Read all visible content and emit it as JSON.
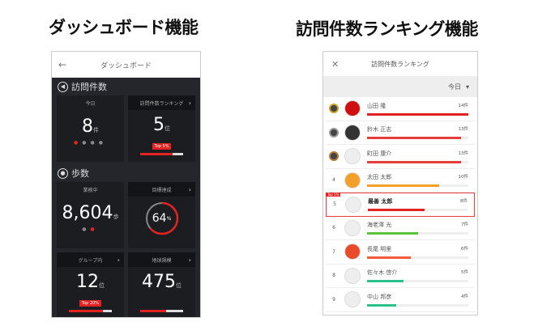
{
  "left": {
    "heading": "ダッシュボード機能",
    "title": "ダッシュボード",
    "visits": {
      "section": "訪問件数",
      "today_label": "今日",
      "today_value": "8",
      "today_unit": "件",
      "rank_label": "訪問件数ランキング",
      "rank_value": "5",
      "rank_unit": "位",
      "rank_badge": "Top 5%",
      "rank_progress": 0.75
    },
    "steps": {
      "section": "歩数",
      "working_label": "業務中",
      "working_value": "8,604",
      "working_unit": "歩",
      "goal_label": "目標達成",
      "goal_value": "64",
      "goal_unit": "%",
      "goal_progress": 0.64,
      "group_label": "グループ内",
      "group_value": "12",
      "group_unit": "位",
      "group_badge": "Top 20%",
      "group_progress": 0.8,
      "global_label": "地球規模",
      "global_value": "475",
      "global_unit": "位",
      "global_progress": 0.6
    }
  },
  "right": {
    "heading": "訪問件数ランキング機能",
    "title": "訪問件数ランキング",
    "period": "今日",
    "me_badge": "Top 5%",
    "rows": [
      {
        "rank": "1",
        "name": "山田 隆",
        "count": "14件",
        "value": 14,
        "color": "#e52222"
      },
      {
        "rank": "2",
        "name": "鈴木 正志",
        "count": "13件",
        "value": 13,
        "color": "#e53c3c"
      },
      {
        "rank": "3",
        "name": "町田 康介",
        "count": "13件",
        "value": 13,
        "color": "#e53c3c"
      },
      {
        "rank": "4",
        "name": "太田 太郎",
        "count": "10件",
        "value": 10,
        "color": "#f2a02a"
      },
      {
        "rank": "5",
        "name": "最善 太郎",
        "count": "8件",
        "value": 8,
        "color": "#e52222"
      },
      {
        "rank": "6",
        "name": "海老澤 光",
        "count": "7件",
        "value": 7,
        "color": "#5cc43a"
      },
      {
        "rank": "7",
        "name": "長尾 明里",
        "count": "6件",
        "value": 6,
        "color": "#f25a3a"
      },
      {
        "rank": "8",
        "name": "佐々木 啓介",
        "count": "5件",
        "value": 5,
        "color": "#2cc08a"
      },
      {
        "rank": "9",
        "name": "中山 邦彦",
        "count": "4件",
        "value": 4,
        "color": "#2cc08a"
      }
    ]
  }
}
